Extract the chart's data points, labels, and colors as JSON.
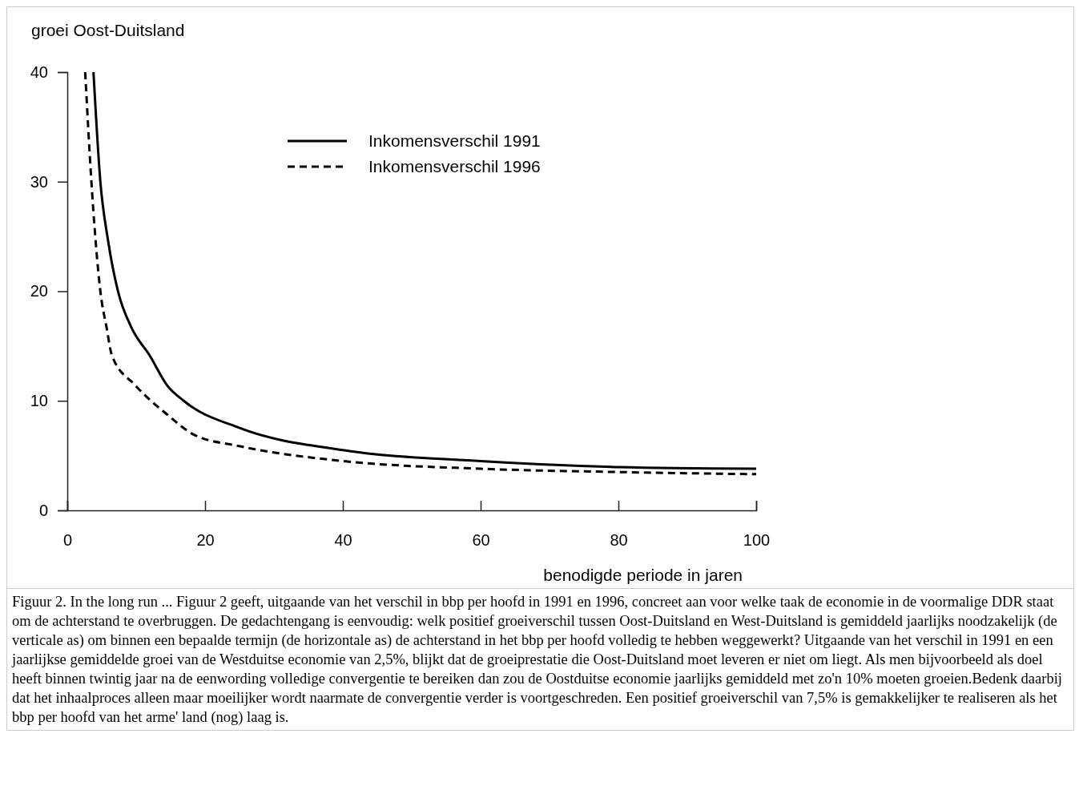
{
  "chart_data": {
    "type": "line",
    "ylabel": "groei Oost-Duitsland",
    "xlabel": "benodigde periode in jaren",
    "xlim": [
      0,
      100
    ],
    "xticks": [
      0,
      20,
      40,
      60,
      80,
      100
    ],
    "ylim": [
      0,
      40
    ],
    "yticks": [
      0,
      10,
      20,
      30,
      40
    ],
    "legend": "top",
    "grid": false,
    "marker": "none",
    "series": [
      {
        "name": "Inkomensverschil 1991",
        "color": "#000000",
        "line_style": "solid",
        "x": [
          3.8,
          4.8,
          5.9,
          7.4,
          9.3,
          12.0,
          14.5,
          16.9,
          25.1,
          40,
          60,
          80,
          100
        ],
        "values": [
          40,
          30,
          24.7,
          19.9,
          16.7,
          14.1,
          11.4,
          10,
          7.5,
          5.5,
          4.5,
          3.95,
          3.8
        ]
      },
      {
        "name": "Inkomensverschil 1996",
        "color": "#000000",
        "line_style": "dashed",
        "x": [
          2.6,
          3.5,
          4.1,
          4.8,
          5.7,
          6.5,
          9.9,
          14.5,
          18.4,
          25.1,
          40,
          60,
          80,
          100
        ],
        "values": [
          40,
          30,
          24.7,
          20,
          16.7,
          14.1,
          11.4,
          8.75,
          6.9,
          5.85,
          4.5,
          3.8,
          3.5,
          3.3
        ]
      }
    ],
    "annotations": [
      "Figuur 2. In the long run ... Figuur 2 geeft, uitgaande van het verschil in bbp per hoofd in 1991 en 1996, concreet aan voor welke taak de economie in de voormalige DDR staat om de achterstand te overbruggen. De gedachtengang is eenvoudig: welk positief groeiverschil tussen Oost-Duitsland en West-Duitsland is gemiddeld jaarlijks noodzakelijk (de verticale as) om binnen een bepaalde termijn (de horizontale as) de achterstand in het bbp per hoofd volledig te hebben weggewerkt? Uitgaande van het verschil in 1991 en een jaarlijkse gemiddelde groei van de Westduitse economie van 2,5%, blijkt dat de groeiprestatie die Oost-Duitsland moet leveren er niet om liegt. Als men bijvoorbeeld als doel heeft binnen twintig jaar na de eenwording volledige convergentie te bereiken dan zou de Oostduitse economie jaarlijks gemiddeld met zo'n 10% moeten groeien.Bedenk daarbij dat het inhaalproces alleen maar moeilijker wordt naarmate de convergentie verder is voortgeschreden. Een positief groeiverschil van 7,5% is gemakkelijker te realiseren als het bbp per hoofd van het arme' land (nog) laag is."
    ]
  }
}
